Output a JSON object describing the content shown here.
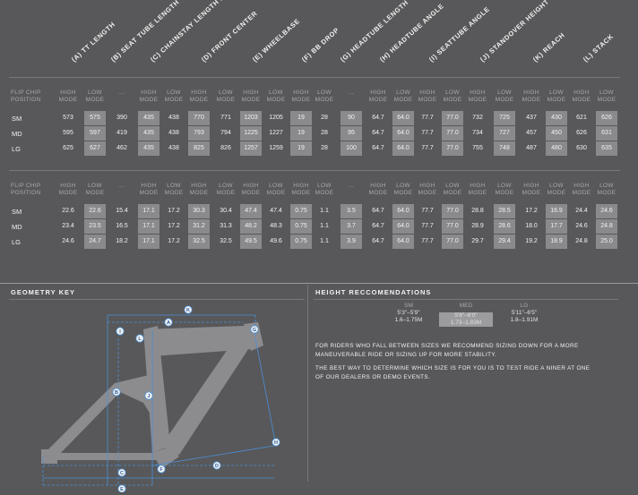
{
  "columns": [
    "(A) TT LENGTH",
    "(B) SEAT TUBE LENGTH",
    "(C) CHAINSTAY LENGTH ACTUAL",
    "(D) FRONT CENTER",
    "(E) WHEELBASE",
    "(F) BB DROP",
    "(G) HEADTUBE LENGTH",
    "(H) HEADTUBE ANGLE",
    "(I) SEATTUBE ANGLE",
    "(J) STANDOVER HEIGHT",
    "(K) REACH",
    "(L) STACK"
  ],
  "row_header": [
    "FLIP CHIP",
    "POSITION"
  ],
  "mode_labels": {
    "high": [
      "HIGH",
      "MODE"
    ],
    "low": [
      "LOW",
      "MODE"
    ],
    "single": "..."
  },
  "sizes": [
    "SM",
    "MD",
    "LG"
  ],
  "table_mm": [
    [
      "573",
      "575",
      "390",
      "435",
      "438",
      "770",
      "771",
      "1203",
      "1205",
      "19",
      "28",
      "90",
      "64.7",
      "64.0",
      "77.7",
      "77.0",
      "732",
      "725",
      "437",
      "430",
      "621",
      "626"
    ],
    [
      "595",
      "597",
      "419",
      "435",
      "438",
      "793",
      "794",
      "1225",
      "1227",
      "19",
      "28",
      "95",
      "64.7",
      "64.0",
      "77.7",
      "77.0",
      "734",
      "727",
      "457",
      "450",
      "626",
      "631"
    ],
    [
      "625",
      "627",
      "462",
      "435",
      "438",
      "825",
      "826",
      "1257",
      "1259",
      "19",
      "28",
      "100",
      "64.7",
      "64.0",
      "77.7",
      "77.0",
      "755",
      "748",
      "487",
      "480",
      "630",
      "635"
    ]
  ],
  "table_in": [
    [
      "22.6",
      "22.6",
      "15.4",
      "17.1",
      "17.2",
      "30.3",
      "30.4",
      "47.4",
      "47.4",
      "0.75",
      "1.1",
      "3.5",
      "64.7",
      "64.0",
      "77.7",
      "77.0",
      "28.8",
      "28.5",
      "17.2",
      "16.9",
      "24.4",
      "24.6"
    ],
    [
      "23.4",
      "23.5",
      "16.5",
      "17.1",
      "17.2",
      "31.2",
      "31.3",
      "48.2",
      "48.3",
      "0.75",
      "1.1",
      "3.7",
      "64.7",
      "64.0",
      "77.7",
      "77.0",
      "28.9",
      "28.6",
      "18.0",
      "17.7",
      "24.6",
      "24.8"
    ],
    [
      "24.6",
      "24.7",
      "18.2",
      "17.1",
      "17.2",
      "32.5",
      "32.5",
      "49.5",
      "49.6",
      "0.75",
      "1.1",
      "3.9",
      "64.7",
      "64.0",
      "77.7",
      "77.0",
      "29.7",
      "29.4",
      "19.2",
      "18.9",
      "24.8",
      "25.0"
    ]
  ],
  "geometry_key": {
    "title": "GEOMETRY KEY",
    "markers": [
      "A",
      "B",
      "C",
      "D",
      "E",
      "F",
      "G",
      "H",
      "I",
      "J",
      "K",
      "L"
    ]
  },
  "height": {
    "title": "HEIGHT RECCOMENDATIONS",
    "sizes": [
      {
        "label": "SM",
        "imperial": "5'3\"–5'9\"",
        "metric": "1.6–1.75M"
      },
      {
        "label": "MED",
        "imperial": "5'8\"–6'0\"",
        "metric": "1.73–1.83M"
      },
      {
        "label": "LG",
        "imperial": "5'11\"–6'5\"",
        "metric": "1.8–1.91M"
      }
    ],
    "note1": "FOR RIDERS WHO FALL BETWEEN SIZES WE RECOMMEND SIZING DOWN FOR A MORE MANEUVERABLE RIDE OR SIZING UP FOR MORE STABILITY.",
    "note2": "THE BEST WAY TO DETERMINE WHICH SIZE IS FOR YOU IS TO TEST RIDE A NINER AT ONE OF OUR DEALERS OR DEMO EVENTS."
  },
  "colors": {
    "background": "#58585a",
    "cell_highlight": "#8a8a8d",
    "blue_lines": "#4a8fd6"
  }
}
